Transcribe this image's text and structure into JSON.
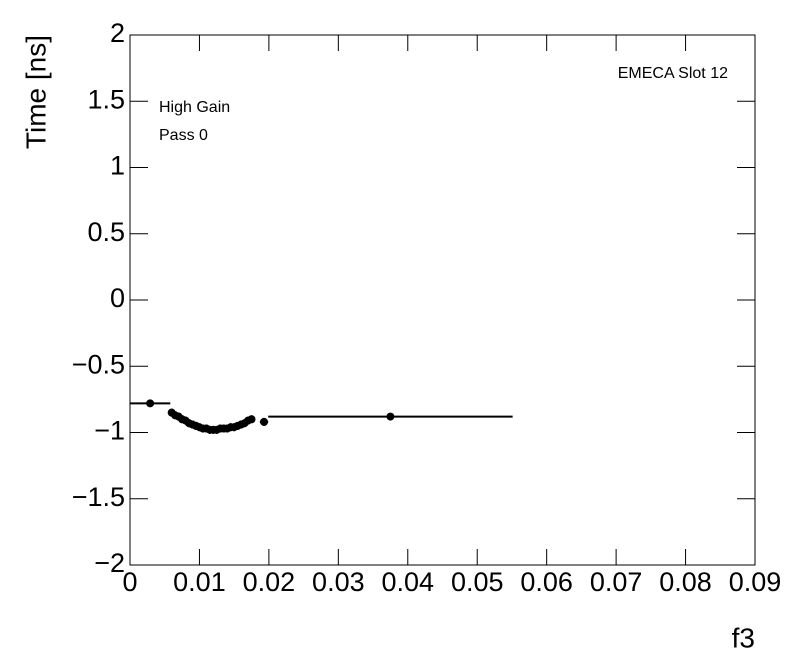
{
  "chart_data": {
    "type": "scatter",
    "x_label": "f3",
    "y_label": "Time [ns]",
    "annotations": [
      "EMECA Slot 12",
      "High Gain",
      "Pass 0"
    ],
    "xlim": [
      0,
      0.09
    ],
    "ylim": [
      -2,
      2
    ],
    "xticks": [
      0,
      0.01,
      0.02,
      0.03,
      0.04,
      0.05,
      0.06,
      0.07,
      0.08,
      0.09
    ],
    "yticks": [
      {
        "value": -2,
        "label": "−2"
      },
      {
        "value": -1.5,
        "label": "−1.5"
      },
      {
        "value": -1,
        "label": "−1"
      },
      {
        "value": -0.5,
        "label": "−0.5"
      },
      0,
      0.5,
      1,
      1.5,
      2
    ],
    "color": "#000000",
    "x": [
      0.0029,
      0.006,
      0.0065,
      0.007,
      0.0075,
      0.008,
      0.0085,
      0.009,
      0.0095,
      0.01,
      0.0105,
      0.011,
      0.0115,
      0.012,
      0.0125,
      0.013,
      0.0135,
      0.014,
      0.0145,
      0.015,
      0.0155,
      0.016,
      0.0165,
      0.017,
      0.0175,
      0.0193,
      0.0375
    ],
    "xerr": [
      0.0029,
      0.00025,
      0.00025,
      0.00025,
      0.00025,
      0.00025,
      0.00025,
      0.00025,
      0.00025,
      0.00025,
      0.00025,
      0.00025,
      0.00025,
      0.00025,
      0.00025,
      0.00025,
      0.00025,
      0.00025,
      0.00025,
      0.00025,
      0.00025,
      0.00025,
      0.00025,
      0.00025,
      0.00025,
      0.0006,
      0.0176
    ],
    "values": [
      -0.78,
      -0.85,
      -0.87,
      -0.88,
      -0.9,
      -0.91,
      -0.93,
      -0.94,
      -0.95,
      -0.96,
      -0.97,
      -0.97,
      -0.98,
      -0.98,
      -0.98,
      -0.97,
      -0.97,
      -0.97,
      -0.96,
      -0.96,
      -0.95,
      -0.94,
      -0.93,
      -0.91,
      -0.9,
      -0.92,
      -0.88
    ],
    "yerr": [
      0.02,
      0.03,
      0.03,
      0.03,
      0.03,
      0.03,
      0.03,
      0.03,
      0.03,
      0.03,
      0.03,
      0.03,
      0.03,
      0.03,
      0.03,
      0.03,
      0.03,
      0.03,
      0.03,
      0.03,
      0.03,
      0.03,
      0.03,
      0.03,
      0.03,
      0.03,
      0.01
    ]
  }
}
